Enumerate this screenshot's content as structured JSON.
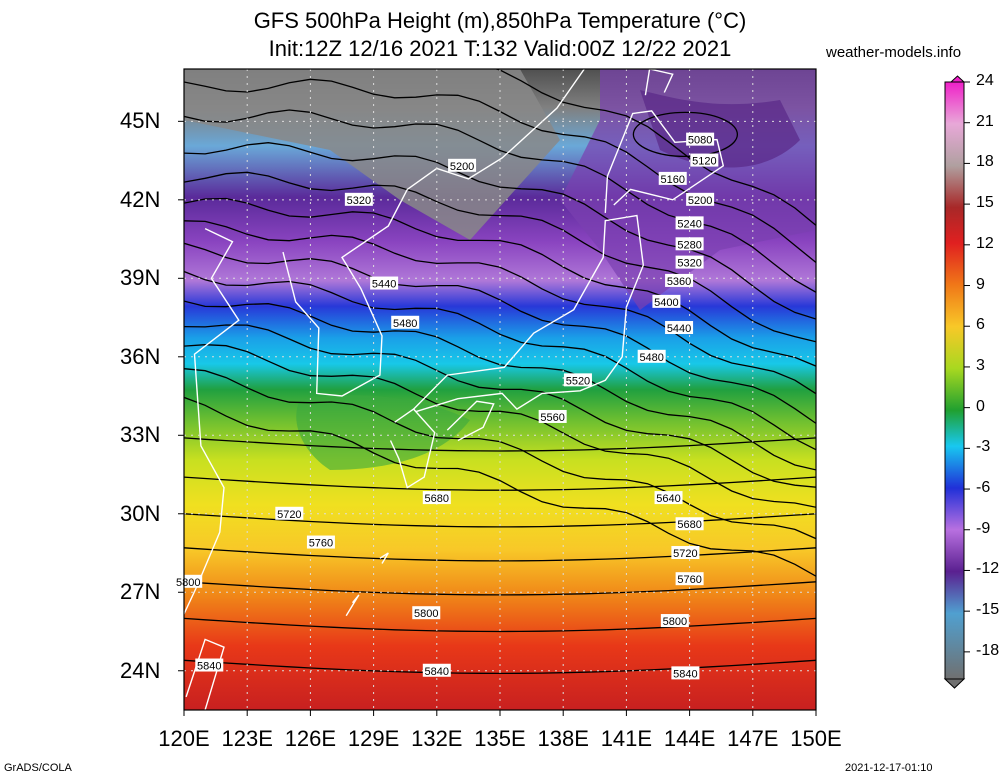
{
  "header": {
    "title_line1": "GFS 500hPa Height (m),850hPa Temperature (°C)",
    "title_line2": "Init:12Z 12/16 2021 T:132 Valid:00Z 12/22 2021",
    "credit": "weather-models.info"
  },
  "axes": {
    "lat_labels": [
      "45N",
      "42N",
      "39N",
      "36N",
      "33N",
      "30N",
      "27N",
      "24N"
    ],
    "lon_labels": [
      "120E",
      "123E",
      "126E",
      "129E",
      "132E",
      "135E",
      "138E",
      "141E",
      "144E",
      "147E",
      "150E"
    ]
  },
  "map": {
    "extent": {
      "lon_min": 120,
      "lon_max": 150,
      "lat_min": 22.5,
      "lat_max": 47.0
    },
    "height_contours": {
      "units": "m",
      "labels": [
        {
          "value": "5080",
          "lon": 144.5,
          "lat": 44.3
        },
        {
          "value": "5120",
          "lon": 144.7,
          "lat": 43.5
        },
        {
          "value": "5160",
          "lon": 143.2,
          "lat": 42.8
        },
        {
          "value": "5200",
          "lon": 144.5,
          "lat": 42.0
        },
        {
          "value": "5200",
          "lon": 133.2,
          "lat": 43.3
        },
        {
          "value": "5320",
          "lon": 128.3,
          "lat": 42.0
        },
        {
          "value": "5240",
          "lon": 144.0,
          "lat": 41.1
        },
        {
          "value": "5280",
          "lon": 144.0,
          "lat": 40.3
        },
        {
          "value": "5320",
          "lon": 144.0,
          "lat": 39.6
        },
        {
          "value": "5360",
          "lon": 143.5,
          "lat": 38.9
        },
        {
          "value": "5400",
          "lon": 142.9,
          "lat": 38.1
        },
        {
          "value": "5440",
          "lon": 129.5,
          "lat": 38.8
        },
        {
          "value": "5440",
          "lon": 143.5,
          "lat": 37.1
        },
        {
          "value": "5480",
          "lon": 130.5,
          "lat": 37.3
        },
        {
          "value": "5480",
          "lon": 142.2,
          "lat": 36.0
        },
        {
          "value": "5520",
          "lon": 138.7,
          "lat": 35.1
        },
        {
          "value": "5560",
          "lon": 137.5,
          "lat": 33.7
        },
        {
          "value": "5680",
          "lon": 132.0,
          "lat": 30.6
        },
        {
          "value": "5640",
          "lon": 143.0,
          "lat": 30.6
        },
        {
          "value": "5720",
          "lon": 125.0,
          "lat": 30.0
        },
        {
          "value": "5680",
          "lon": 144.0,
          "lat": 29.6
        },
        {
          "value": "5760",
          "lon": 126.5,
          "lat": 28.9
        },
        {
          "value": "5720",
          "lon": 143.8,
          "lat": 28.5
        },
        {
          "value": "5760",
          "lon": 144.0,
          "lat": 27.5
        },
        {
          "value": "5800",
          "lon": 120.2,
          "lat": 27.4
        },
        {
          "value": "5800",
          "lon": 131.5,
          "lat": 26.2
        },
        {
          "value": "5800",
          "lon": 143.3,
          "lat": 25.9
        },
        {
          "value": "5840",
          "lon": 121.2,
          "lat": 24.2
        },
        {
          "value": "5840",
          "lon": 132.0,
          "lat": 24.0
        },
        {
          "value": "5840",
          "lon": 143.8,
          "lat": 23.9
        }
      ]
    }
  },
  "colorbar": {
    "units": "°C",
    "min": -20,
    "max": 24,
    "tick_labels": [
      "24",
      "21",
      "18",
      "15",
      "12",
      "9",
      "6",
      "3",
      "0",
      "-3",
      "-6",
      "-9",
      "-12",
      "-15",
      "-18"
    ],
    "colors": {
      "24": "#f022c8",
      "21": "#e8a8d8",
      "18": "#b0a0a0",
      "15": "#a82828",
      "12": "#e02020",
      "9": "#f07818",
      "6": "#f8c828",
      "3": "#a8d820",
      "0": "#20a030",
      "-3": "#18c8f0",
      "-6": "#2030d8",
      "-9": "#b870e0",
      "-12": "#7030b0",
      "-15": "#50a0d0",
      "-18": "#909090",
      "-20": "#707070"
    }
  },
  "footer": {
    "left": "GrADS/COLA",
    "right": "2021-12-17-01:10"
  }
}
